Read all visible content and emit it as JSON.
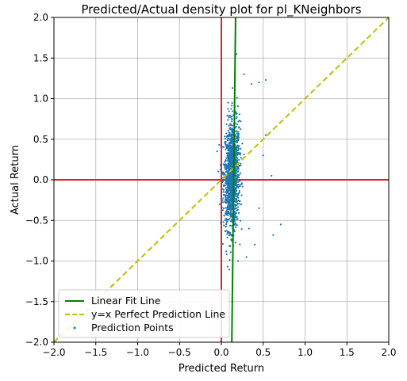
{
  "chart_data": {
    "type": "scatter",
    "title": "Predicted/Actual density plot for pl_KNeighbors",
    "xlabel": "Predicted Return",
    "ylabel": "Actual Return",
    "xlim": [
      -2.0,
      2.0
    ],
    "ylim": [
      -2.0,
      2.0
    ],
    "grid": true,
    "x_ticks": [
      "-2.0",
      "-1.5",
      "-1.0",
      "-0.5",
      "0.0",
      "0.5",
      "1.0",
      "1.5",
      "2.0"
    ],
    "y_ticks": [
      "-2.0",
      "-1.5",
      "-1.0",
      "-0.5",
      "0.0",
      "0.5",
      "1.0",
      "1.5",
      "2.0"
    ],
    "legend_position": "lower-left",
    "reference_lines": {
      "vertical_x": 0.0,
      "horizontal_y": 0.0,
      "color": "#d62728"
    },
    "series": [
      {
        "name": "Linear Fit Line",
        "kind": "line",
        "style": "solid",
        "color": "#008000",
        "x": [
          0.125,
          0.17
        ],
        "y": [
          -2.0,
          2.0
        ]
      },
      {
        "name": "y=x Perfect Prediction Line",
        "kind": "line",
        "style": "dashed",
        "color": "#bfbf00",
        "x": [
          -2.0,
          2.0
        ],
        "y": [
          -2.0,
          2.0
        ]
      },
      {
        "name": "Prediction Points",
        "kind": "scatter",
        "color": "#1f77b4",
        "x_center": 0.12,
        "x_spread": 0.045,
        "y_center": 0.05,
        "y_spread": 0.33,
        "count": 1400,
        "outliers": [
          [
            0.53,
            1.23
          ],
          [
            0.18,
            1.55
          ],
          [
            0.27,
            1.3
          ],
          [
            0.36,
            1.18
          ],
          [
            0.45,
            1.2
          ],
          [
            0.6,
            0.05
          ],
          [
            0.53,
            0.55
          ],
          [
            0.71,
            -0.55
          ],
          [
            0.62,
            -0.68
          ],
          [
            0.3,
            -0.95
          ],
          [
            0.2,
            -1.0
          ],
          [
            0.4,
            -0.8
          ],
          [
            -0.05,
            0.35
          ],
          [
            -0.02,
            -0.3
          ],
          [
            0.45,
            -0.35
          ],
          [
            0.5,
            0.3
          ],
          [
            0.33,
            -0.6
          ],
          [
            0.08,
            0.95
          ]
        ]
      }
    ]
  }
}
